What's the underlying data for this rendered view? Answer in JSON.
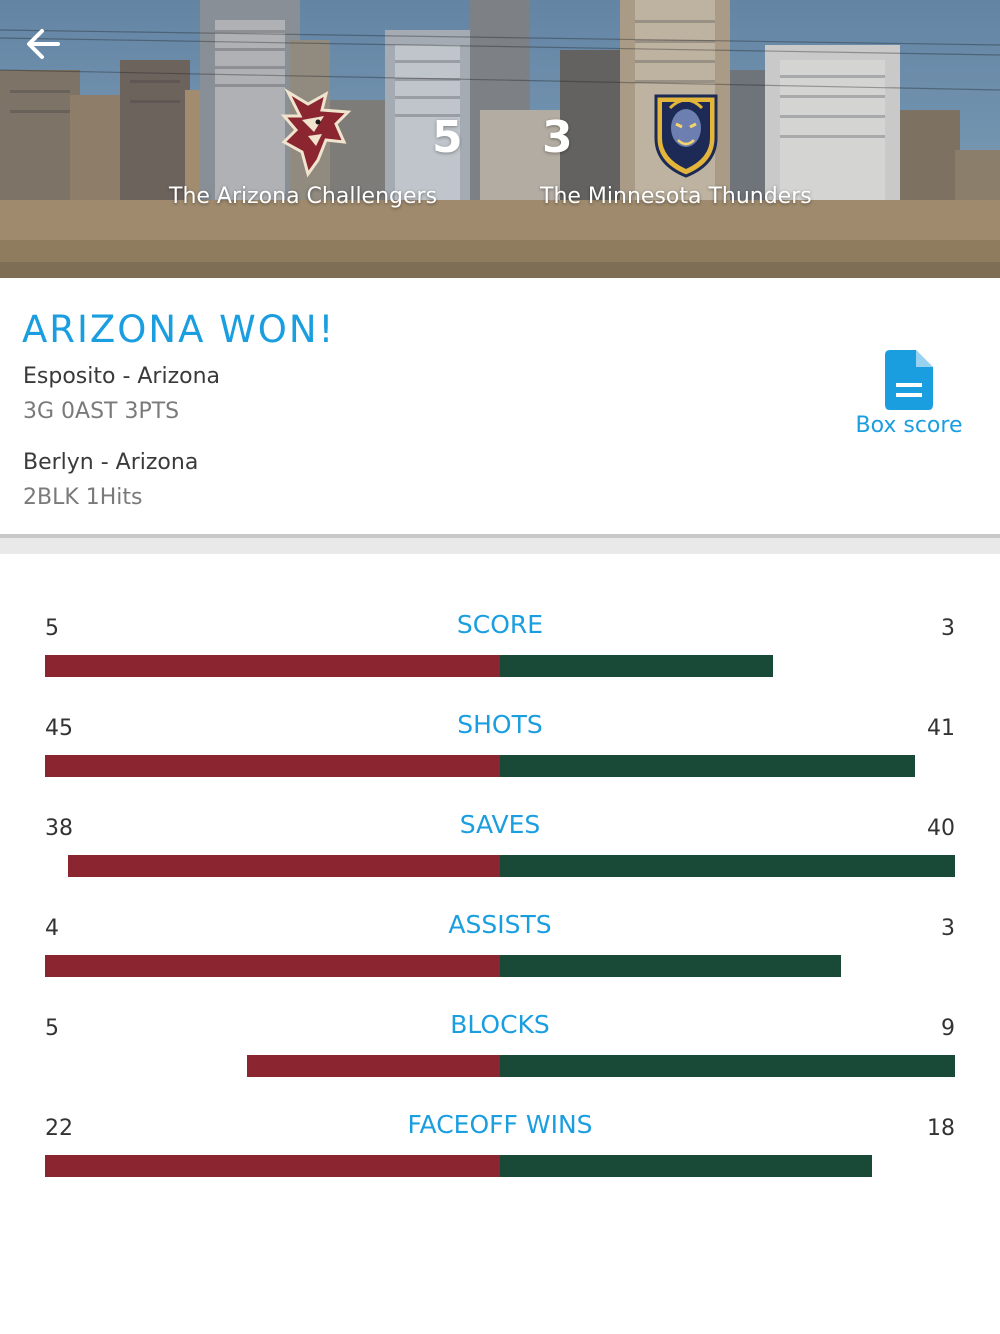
{
  "colors": {
    "accent": "#1a9ee0",
    "home_bar": "#8b2631",
    "away_bar": "#184a37",
    "text_dark": "#333333",
    "text_muted": "#7a7a7a"
  },
  "header": {
    "back_icon": "arrow-left-icon",
    "home": {
      "name": "The Arizona Challengers",
      "score": "5",
      "logo_icon": "coyote-logo-icon"
    },
    "away": {
      "name": "The Minnesota Thunders",
      "score": "3",
      "logo_icon": "thunder-shield-logo-icon"
    }
  },
  "summary": {
    "result": "ARIZONA WON!",
    "stars": [
      {
        "name": "Esposito - Arizona",
        "line": "3G 0AST 3PTS"
      },
      {
        "name": "Berlyn - Arizona",
        "line": "2BLK 1Hits"
      }
    ],
    "box_score": {
      "label": "Box score",
      "icon": "document-icon"
    }
  },
  "stats": [
    {
      "label": "SCORE",
      "home": 5,
      "away": 3,
      "home_fraction": 1.0,
      "away_fraction": 0.6
    },
    {
      "label": "SHOTS",
      "home": 45,
      "away": 41,
      "home_fraction": 1.0,
      "away_fraction": 0.911
    },
    {
      "label": "SAVES",
      "home": 38,
      "away": 40,
      "home_fraction": 0.95,
      "away_fraction": 1.0
    },
    {
      "label": "ASSISTS",
      "home": 4,
      "away": 3,
      "home_fraction": 1.0,
      "away_fraction": 0.75
    },
    {
      "label": "BLOCKS",
      "home": 5,
      "away": 9,
      "home_fraction": 0.556,
      "away_fraction": 1.0
    },
    {
      "label": "FACEOFF WINS",
      "home": 22,
      "away": 18,
      "home_fraction": 1.0,
      "away_fraction": 0.818
    }
  ]
}
